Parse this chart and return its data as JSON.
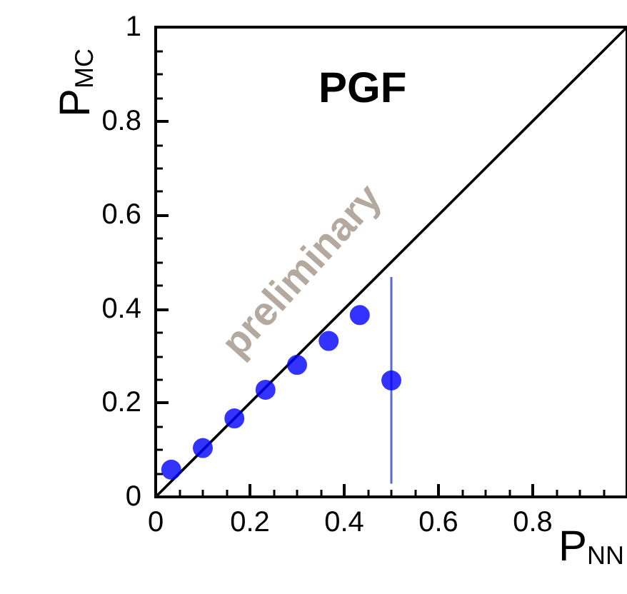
{
  "chart_data": {
    "type": "scatter",
    "title": "PGF",
    "xlabel": "P$_{NN}$",
    "ylabel": "P$_{MC}$",
    "annotations": [
      "preliminary"
    ],
    "xlim": [
      0,
      1
    ],
    "xticks": [
      0,
      0.2,
      0.4,
      0.6,
      0.8
    ],
    "ylim": [
      0,
      1
    ],
    "yticks": [
      0,
      0.2,
      0.4,
      0.6,
      0.8,
      1
    ],
    "marker": "circle",
    "series": [
      {
        "type": "scatter",
        "color": "#0000ff",
        "x": [
          0.033,
          0.1,
          0.167,
          0.233,
          0.3,
          0.367,
          0.433,
          0.5
        ],
        "values": [
          0.058,
          0.104,
          0.167,
          0.228,
          0.281,
          0.332,
          0.387,
          0.248
        ],
        "errors": [
          null,
          null,
          null,
          null,
          null,
          null,
          null,
          0.22
        ]
      },
      {
        "type": "line",
        "color": "#000000",
        "marker": "none",
        "x": [
          0,
          1
        ],
        "values": [
          0,
          1
        ]
      }
    ]
  }
}
